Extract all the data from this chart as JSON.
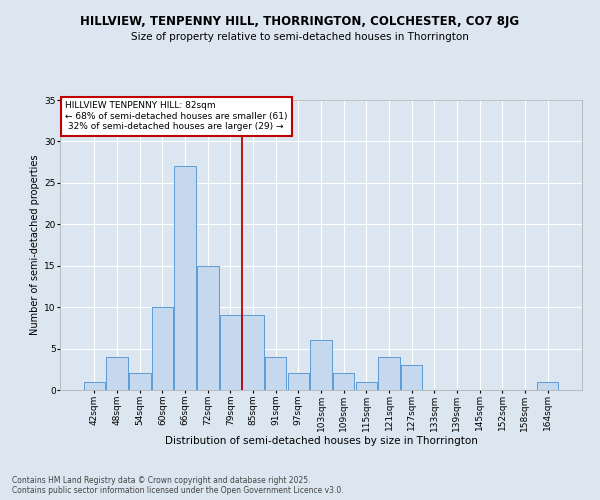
{
  "title": "HILLVIEW, TENPENNY HILL, THORRINGTON, COLCHESTER, CO7 8JG",
  "subtitle": "Size of property relative to semi-detached houses in Thorrington",
  "xlabel": "Distribution of semi-detached houses by size in Thorrington",
  "ylabel": "Number of semi-detached properties",
  "property_size": 82,
  "property_name": "HILLVIEW TENPENNY HILL",
  "pct_smaller": 68,
  "count_smaller": 61,
  "pct_larger": 32,
  "count_larger": 29,
  "categories": [
    "42sqm",
    "48sqm",
    "54sqm",
    "60sqm",
    "66sqm",
    "72sqm",
    "79sqm",
    "85sqm",
    "91sqm",
    "97sqm",
    "103sqm",
    "109sqm",
    "115sqm",
    "121sqm",
    "127sqm",
    "133sqm",
    "139sqm",
    "145sqm",
    "152sqm",
    "158sqm",
    "164sqm"
  ],
  "values": [
    1,
    4,
    2,
    10,
    27,
    15,
    9,
    9,
    4,
    2,
    6,
    2,
    1,
    4,
    3,
    0,
    0,
    0,
    0,
    0,
    1
  ],
  "bar_color": "#c5d8ed",
  "bar_edge_color": "#5b9bd5",
  "vline_color": "#c00000",
  "background_color": "#dce6f1",
  "annotation_box_color": "#c00000",
  "footer": "Contains HM Land Registry data © Crown copyright and database right 2025.\nContains public sector information licensed under the Open Government Licence v3.0.",
  "ylim": [
    0,
    35
  ],
  "yticks": [
    0,
    5,
    10,
    15,
    20,
    25,
    30,
    35
  ],
  "title_fontsize": 8.5,
  "subtitle_fontsize": 7.5,
  "xlabel_fontsize": 7.5,
  "ylabel_fontsize": 7.0,
  "tick_fontsize": 6.5,
  "ann_fontsize": 6.5,
  "footer_fontsize": 5.5
}
